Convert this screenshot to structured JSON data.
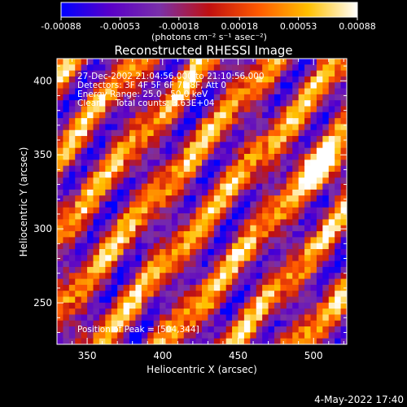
{
  "colorbar": {
    "tick_labels": [
      "-0.00088",
      "-0.00053",
      "-0.00018",
      "0.00018",
      "0.00053",
      "0.00088"
    ],
    "tick_values": [
      -0.00088,
      -0.00053,
      -0.00018,
      0.00018,
      0.00053,
      0.00088
    ],
    "range": [
      -0.00088,
      0.00088
    ],
    "units_label": "(photons cm⁻² s⁻¹ asec⁻²)",
    "colormap": [
      "#0000ff",
      "#5a00c8",
      "#7a30a8",
      "#c01010",
      "#ff5a00",
      "#ffc000",
      "#ffffff"
    ]
  },
  "chart_data": {
    "type": "heatmap",
    "title": "Reconstructed RHESSI Image",
    "xlabel": "Heliocentric X (arcsec)",
    "ylabel": "Heliocentric Y (arcsec)",
    "xlim": [
      330,
      522
    ],
    "ylim": [
      222,
      415
    ],
    "xticks": [
      350,
      400,
      450,
      500
    ],
    "yticks": [
      250,
      300,
      350,
      400
    ],
    "xtick_labels": [
      "350",
      "400",
      "450",
      "500"
    ],
    "ytick_labels": [
      "250",
      "300",
      "350",
      "400"
    ],
    "peak_position": [
      504,
      344
    ],
    "annotations": [
      "27-Dec-2002 21:04:56.000 to 21:10:56.000",
      "Detectors: 3F 4F 5F 6F 7F 8F, Att 0",
      "Energy Range: 25.0 - 50.0 keV",
      "Clean     Total counts: 3.63E+04"
    ],
    "peak_label": "Position of Peak = [504,344]"
  },
  "footer": {
    "timestamp": "4-May-2022 17:40"
  }
}
